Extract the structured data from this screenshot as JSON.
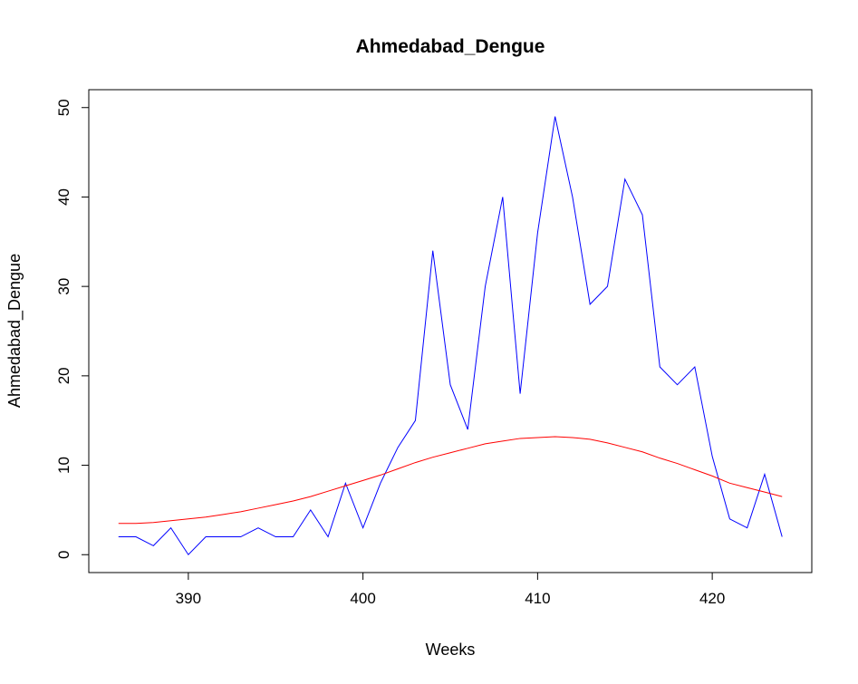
{
  "chart_data": {
    "type": "line",
    "title": "Ahmedabad_Dengue",
    "xlabel": "Weeks",
    "ylabel": "Ahmedabad_Dengue",
    "xlim": [
      384.3,
      425.7
    ],
    "ylim": [
      -2,
      52
    ],
    "x_ticks": [
      390,
      400,
      410,
      420
    ],
    "y_ticks": [
      0,
      10,
      20,
      30,
      40,
      50
    ],
    "grid": false,
    "legend": "none",
    "x": [
      386,
      387,
      388,
      389,
      390,
      391,
      392,
      393,
      394,
      395,
      396,
      397,
      398,
      399,
      400,
      401,
      402,
      403,
      404,
      405,
      406,
      407,
      408,
      409,
      410,
      411,
      412,
      413,
      414,
      415,
      416,
      417,
      418,
      419,
      420,
      421,
      422,
      423,
      424
    ],
    "series": [
      {
        "color": "#0000ff",
        "values": [
          2,
          2,
          1,
          3,
          0,
          2,
          2,
          2,
          3,
          2,
          2,
          5,
          2,
          8,
          3,
          8,
          12,
          15,
          34,
          19,
          14,
          30,
          40,
          18,
          36,
          49,
          40,
          28,
          30,
          42,
          38,
          21,
          19,
          21,
          11,
          4,
          3,
          9,
          2
        ]
      },
      {
        "color": "#ff0000",
        "values": [
          3.5,
          3.5,
          3.6,
          3.8,
          4.0,
          4.2,
          4.5,
          4.8,
          5.2,
          5.6,
          6.0,
          6.5,
          7.1,
          7.7,
          8.3,
          8.9,
          9.6,
          10.3,
          10.9,
          11.4,
          11.9,
          12.4,
          12.7,
          13.0,
          13.1,
          13.2,
          13.1,
          12.9,
          12.5,
          12.0,
          11.5,
          10.8,
          10.2,
          9.5,
          8.8,
          8.0,
          7.5,
          7.0,
          6.5
        ]
      }
    ]
  }
}
